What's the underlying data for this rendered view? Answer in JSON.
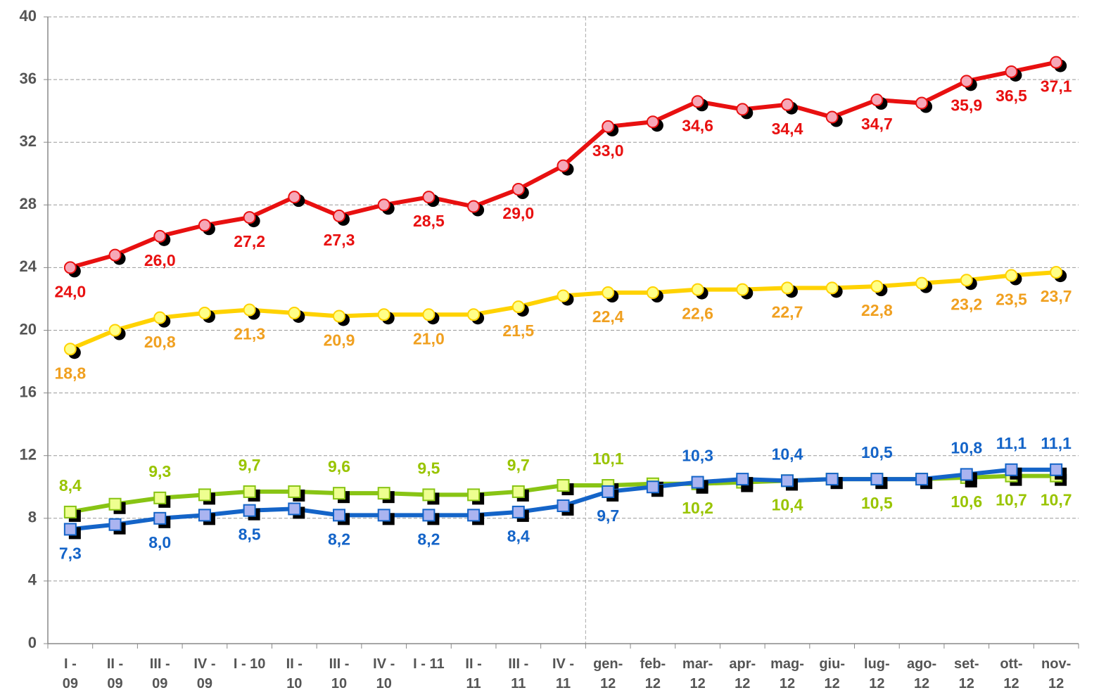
{
  "chart_data": {
    "type": "line",
    "categories": [
      "I -\n09",
      "II -\n09",
      "III -\n09",
      "IV -\n09",
      "I - 10",
      "II -\n10",
      "III -\n10",
      "IV -\n10",
      "I - 11",
      "II -\n11",
      "III -\n11",
      "IV -\n11",
      "gen-\n12",
      "feb-\n12",
      "mar-\n12",
      "apr-\n12",
      "mag-\n12",
      "giu-\n12",
      "lug-\n12",
      "ago-\n12",
      "set-\n12",
      "ott-\n12",
      "nov-\n12"
    ],
    "ylim": [
      0,
      40
    ],
    "yticks": [
      0,
      4,
      8,
      12,
      16,
      20,
      24,
      28,
      32,
      36,
      40
    ],
    "grid": true,
    "series": [
      {
        "color": "#e81010",
        "marker_color": "#f6a8b8",
        "label_color": "#e81010",
        "marker": "circle",
        "values": [
          24.0,
          24.8,
          26.0,
          26.7,
          27.2,
          28.5,
          27.3,
          28.0,
          28.5,
          27.9,
          29.0,
          30.5,
          33.0,
          33.3,
          34.6,
          34.1,
          34.4,
          33.6,
          34.7,
          34.5,
          35.9,
          36.5,
          37.1
        ],
        "value_labels": [
          "24,0",
          null,
          "26,0",
          null,
          "27,2",
          null,
          "27,3",
          null,
          "28,5",
          null,
          "29,0",
          null,
          "33,0",
          null,
          "34,6",
          null,
          "34,4",
          null,
          "34,7",
          null,
          "35,9",
          "36,5",
          "37,1"
        ]
      },
      {
        "color": "#ffd200",
        "marker_color": "#ffff88",
        "label_color": "#f0a020",
        "marker": "circle",
        "values": [
          18.8,
          20.0,
          20.8,
          21.1,
          21.3,
          21.1,
          20.9,
          21.0,
          21.0,
          21.0,
          21.5,
          22.2,
          22.4,
          22.4,
          22.6,
          22.6,
          22.7,
          22.7,
          22.8,
          23.0,
          23.2,
          23.5,
          23.7
        ],
        "value_labels": [
          "18,8",
          null,
          "20,8",
          null,
          "21,3",
          null,
          "20,9",
          null,
          "21,0",
          null,
          "21,5",
          null,
          "22,4",
          null,
          "22,6",
          null,
          "22,7",
          null,
          "22,8",
          null,
          "23,2",
          "23,5",
          "23,7"
        ]
      },
      {
        "color": "#88c414",
        "marker_color": "#eeff90",
        "label_color": "#99c400",
        "marker": "square",
        "values": [
          8.4,
          8.9,
          9.3,
          9.5,
          9.7,
          9.7,
          9.6,
          9.6,
          9.5,
          9.5,
          9.7,
          10.1,
          10.1,
          10.2,
          10.2,
          10.3,
          10.4,
          10.5,
          10.5,
          10.5,
          10.6,
          10.7,
          10.7
        ],
        "value_labels": [
          "8,4",
          null,
          "9,3",
          null,
          "9,7",
          null,
          "9,6",
          null,
          "9,5",
          null,
          "9,7",
          null,
          "10,1",
          null,
          "10,2",
          null,
          "10,4",
          null,
          "10,5",
          null,
          "10,6",
          "10,7",
          "10,7"
        ]
      },
      {
        "color": "#1464c8",
        "marker_color": "#aab4f0",
        "label_color": "#1464c8",
        "marker": "square",
        "values": [
          7.3,
          7.6,
          8.0,
          8.2,
          8.5,
          8.6,
          8.2,
          8.2,
          8.2,
          8.2,
          8.4,
          8.8,
          9.7,
          10.0,
          10.3,
          10.5,
          10.4,
          10.5,
          10.5,
          10.5,
          10.8,
          11.1,
          11.1
        ],
        "value_labels": [
          "7,3",
          null,
          "8,0",
          null,
          "8,5",
          null,
          "8,2",
          null,
          "8,2",
          null,
          "8,4",
          null,
          "9,7",
          null,
          "10,3",
          null,
          "10,4",
          null,
          "10,5",
          null,
          "10,8",
          "11,1",
          "11,1"
        ]
      }
    ]
  }
}
